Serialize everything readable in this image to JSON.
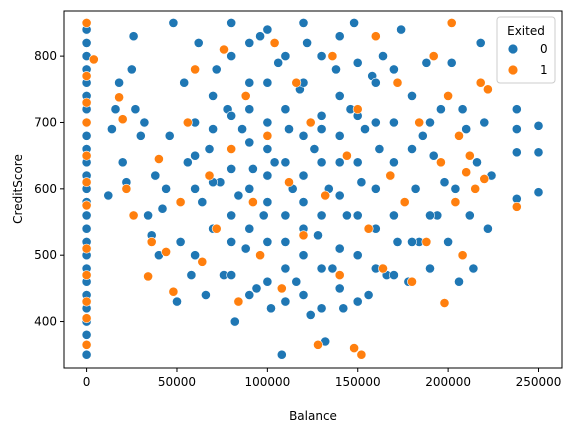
{
  "chart_data": {
    "type": "scatter",
    "title": "",
    "xlabel": "Balance",
    "ylabel": "CreditScore",
    "xlim": [
      -12500,
      263000
    ],
    "ylim": [
      330,
      868
    ],
    "xticks": [
      0,
      50000,
      100000,
      150000,
      200000,
      250000
    ],
    "xtick_labels": [
      "0",
      "50000",
      "100000",
      "150000",
      "200000",
      "250000"
    ],
    "yticks": [
      400,
      500,
      600,
      700,
      800
    ],
    "ytick_labels": [
      "400",
      "500",
      "600",
      "700",
      "800"
    ],
    "grid": false,
    "legend": {
      "title": "Exited",
      "placement": "top-right",
      "entries": [
        {
          "label": "0",
          "color": "#1f77b4"
        },
        {
          "label": "1",
          "color": "#ff7f0e"
        }
      ]
    },
    "series": [
      {
        "name": "0",
        "color": "#1f77b4",
        "points": [
          [
            0,
            350
          ],
          [
            0,
            365
          ],
          [
            0,
            380
          ],
          [
            0,
            400
          ],
          [
            0,
            420
          ],
          [
            0,
            440
          ],
          [
            0,
            460
          ],
          [
            0,
            480
          ],
          [
            0,
            500
          ],
          [
            0,
            520
          ],
          [
            0,
            540
          ],
          [
            0,
            560
          ],
          [
            0,
            580
          ],
          [
            0,
            600
          ],
          [
            0,
            620
          ],
          [
            0,
            640
          ],
          [
            0,
            660
          ],
          [
            0,
            680
          ],
          [
            0,
            700
          ],
          [
            0,
            720
          ],
          [
            0,
            740
          ],
          [
            0,
            760
          ],
          [
            0,
            780
          ],
          [
            0,
            800
          ],
          [
            0,
            820
          ],
          [
            0,
            840
          ],
          [
            0,
            850
          ],
          [
            12000,
            590
          ],
          [
            14000,
            690
          ],
          [
            16000,
            720
          ],
          [
            18000,
            760
          ],
          [
            20000,
            640
          ],
          [
            22000,
            610
          ],
          [
            25000,
            780
          ],
          [
            26000,
            830
          ],
          [
            27000,
            720
          ],
          [
            30000,
            680
          ],
          [
            32000,
            700
          ],
          [
            34000,
            560
          ],
          [
            36000,
            530
          ],
          [
            38000,
            620
          ],
          [
            40000,
            500
          ],
          [
            42000,
            570
          ],
          [
            44000,
            600
          ],
          [
            46000,
            680
          ],
          [
            48000,
            850
          ],
          [
            50000,
            430
          ],
          [
            52000,
            520
          ],
          [
            54000,
            760
          ],
          [
            56000,
            640
          ],
          [
            58000,
            470
          ],
          [
            60000,
            700
          ],
          [
            62000,
            820
          ],
          [
            64000,
            580
          ],
          [
            66000,
            440
          ],
          [
            68000,
            660
          ],
          [
            70000,
            540
          ],
          [
            72000,
            780
          ],
          [
            74000,
            610
          ],
          [
            76000,
            470
          ],
          [
            78000,
            720
          ],
          [
            80000,
            850
          ],
          [
            82000,
            400
          ],
          [
            84000,
            590
          ],
          [
            86000,
            690
          ],
          [
            88000,
            510
          ],
          [
            90000,
            760
          ],
          [
            92000,
            630
          ],
          [
            94000,
            450
          ],
          [
            96000,
            830
          ],
          [
            98000,
            560
          ],
          [
            100000,
            700
          ],
          [
            102000,
            420
          ],
          [
            104000,
            640
          ],
          [
            106000,
            790
          ],
          [
            108000,
            350
          ],
          [
            110000,
            520
          ],
          [
            112000,
            690
          ],
          [
            114000,
            600
          ],
          [
            116000,
            460
          ],
          [
            118000,
            750
          ],
          [
            120000,
            580
          ],
          [
            122000,
            820
          ],
          [
            124000,
            410
          ],
          [
            126000,
            660
          ],
          [
            128000,
            530
          ],
          [
            130000,
            710
          ],
          [
            132000,
            370
          ],
          [
            134000,
            600
          ],
          [
            136000,
            480
          ],
          [
            138000,
            780
          ],
          [
            140000,
            640
          ],
          [
            142000,
            420
          ],
          [
            144000,
            560
          ],
          [
            146000,
            720
          ],
          [
            148000,
            850
          ],
          [
            150000,
            500
          ],
          [
            152000,
            610
          ],
          [
            154000,
            690
          ],
          [
            156000,
            440
          ],
          [
            158000,
            770
          ],
          [
            160000,
            540
          ],
          [
            162000,
            660
          ],
          [
            164000,
            800
          ],
          [
            166000,
            470
          ],
          [
            168000,
            620
          ],
          [
            170000,
            700
          ],
          [
            172000,
            520
          ],
          [
            174000,
            840
          ],
          [
            176000,
            580
          ],
          [
            178000,
            460
          ],
          [
            180000,
            740
          ],
          [
            182000,
            600
          ],
          [
            184000,
            520
          ],
          [
            186000,
            680
          ],
          [
            188000,
            790
          ],
          [
            190000,
            480
          ],
          [
            192000,
            650
          ],
          [
            194000,
            560
          ],
          [
            196000,
            720
          ],
          [
            198000,
            610
          ],
          [
            200000,
            520
          ],
          [
            202000,
            790
          ],
          [
            204000,
            600
          ],
          [
            206000,
            460
          ],
          [
            208000,
            720
          ],
          [
            210000,
            690
          ],
          [
            212000,
            560
          ],
          [
            214000,
            480
          ],
          [
            216000,
            640
          ],
          [
            218000,
            820
          ],
          [
            220000,
            700
          ],
          [
            222000,
            540
          ],
          [
            224000,
            620
          ],
          [
            238000,
            720
          ],
          [
            238000,
            690
          ],
          [
            238000,
            655
          ],
          [
            238000,
            585
          ],
          [
            250000,
            695
          ],
          [
            250000,
            655
          ],
          [
            250000,
            595
          ],
          [
            60000,
            500
          ],
          [
            60000,
            600
          ],
          [
            60000,
            650
          ],
          [
            70000,
            610
          ],
          [
            70000,
            690
          ],
          [
            70000,
            740
          ],
          [
            80000,
            470
          ],
          [
            80000,
            520
          ],
          [
            80000,
            560
          ],
          [
            80000,
            630
          ],
          [
            80000,
            710
          ],
          [
            80000,
            800
          ],
          [
            90000,
            440
          ],
          [
            90000,
            540
          ],
          [
            90000,
            600
          ],
          [
            90000,
            670
          ],
          [
            90000,
            720
          ],
          [
            90000,
            820
          ],
          [
            100000,
            460
          ],
          [
            100000,
            520
          ],
          [
            100000,
            580
          ],
          [
            100000,
            620
          ],
          [
            100000,
            660
          ],
          [
            100000,
            760
          ],
          [
            100000,
            840
          ],
          [
            110000,
            430
          ],
          [
            110000,
            480
          ],
          [
            110000,
            560
          ],
          [
            110000,
            640
          ],
          [
            110000,
            720
          ],
          [
            110000,
            800
          ],
          [
            120000,
            440
          ],
          [
            120000,
            500
          ],
          [
            120000,
            540
          ],
          [
            120000,
            620
          ],
          [
            120000,
            680
          ],
          [
            120000,
            760
          ],
          [
            120000,
            850
          ],
          [
            130000,
            420
          ],
          [
            130000,
            480
          ],
          [
            130000,
            560
          ],
          [
            130000,
            640
          ],
          [
            130000,
            690
          ],
          [
            130000,
            800
          ],
          [
            140000,
            450
          ],
          [
            140000,
            510
          ],
          [
            140000,
            590
          ],
          [
            140000,
            680
          ],
          [
            140000,
            740
          ],
          [
            140000,
            830
          ],
          [
            150000,
            430
          ],
          [
            150000,
            560
          ],
          [
            150000,
            640
          ],
          [
            150000,
            710
          ],
          [
            150000,
            790
          ],
          [
            160000,
            480
          ],
          [
            160000,
            600
          ],
          [
            160000,
            700
          ],
          [
            160000,
            760
          ],
          [
            170000,
            470
          ],
          [
            170000,
            560
          ],
          [
            170000,
            640
          ],
          [
            170000,
            780
          ],
          [
            180000,
            520
          ],
          [
            180000,
            660
          ],
          [
            190000,
            560
          ],
          [
            190000,
            700
          ]
        ]
      },
      {
        "name": "1",
        "color": "#ff7f0e",
        "points": [
          [
            0,
            365
          ],
          [
            0,
            405
          ],
          [
            0,
            430
          ],
          [
            0,
            470
          ],
          [
            0,
            510
          ],
          [
            0,
            575
          ],
          [
            0,
            610
          ],
          [
            0,
            650
          ],
          [
            0,
            700
          ],
          [
            0,
            730
          ],
          [
            0,
            770
          ],
          [
            0,
            850
          ],
          [
            4000,
            795
          ],
          [
            18000,
            738
          ],
          [
            20000,
            705
          ],
          [
            22000,
            600
          ],
          [
            26000,
            560
          ],
          [
            34000,
            468
          ],
          [
            36000,
            520
          ],
          [
            40000,
            645
          ],
          [
            44000,
            505
          ],
          [
            48000,
            445
          ],
          [
            52000,
            580
          ],
          [
            56000,
            700
          ],
          [
            60000,
            780
          ],
          [
            64000,
            490
          ],
          [
            68000,
            620
          ],
          [
            72000,
            540
          ],
          [
            76000,
            810
          ],
          [
            80000,
            660
          ],
          [
            84000,
            430
          ],
          [
            88000,
            740
          ],
          [
            92000,
            580
          ],
          [
            96000,
            500
          ],
          [
            100000,
            680
          ],
          [
            104000,
            820
          ],
          [
            108000,
            450
          ],
          [
            112000,
            610
          ],
          [
            116000,
            760
          ],
          [
            120000,
            530
          ],
          [
            124000,
            700
          ],
          [
            128000,
            365
          ],
          [
            132000,
            590
          ],
          [
            136000,
            800
          ],
          [
            140000,
            470
          ],
          [
            144000,
            650
          ],
          [
            148000,
            360
          ],
          [
            150000,
            720
          ],
          [
            152000,
            350
          ],
          [
            156000,
            540
          ],
          [
            160000,
            830
          ],
          [
            164000,
            480
          ],
          [
            168000,
            620
          ],
          [
            172000,
            760
          ],
          [
            176000,
            580
          ],
          [
            180000,
            460
          ],
          [
            184000,
            700
          ],
          [
            188000,
            520
          ],
          [
            192000,
            800
          ],
          [
            196000,
            640
          ],
          [
            198000,
            428
          ],
          [
            200000,
            740
          ],
          [
            202000,
            850
          ],
          [
            204000,
            580
          ],
          [
            206000,
            680
          ],
          [
            208000,
            500
          ],
          [
            210000,
            625
          ],
          [
            212000,
            650
          ],
          [
            215000,
            600
          ],
          [
            218000,
            760
          ],
          [
            220000,
            615
          ],
          [
            222000,
            750
          ],
          [
            238000,
            573
          ]
        ]
      }
    ]
  }
}
